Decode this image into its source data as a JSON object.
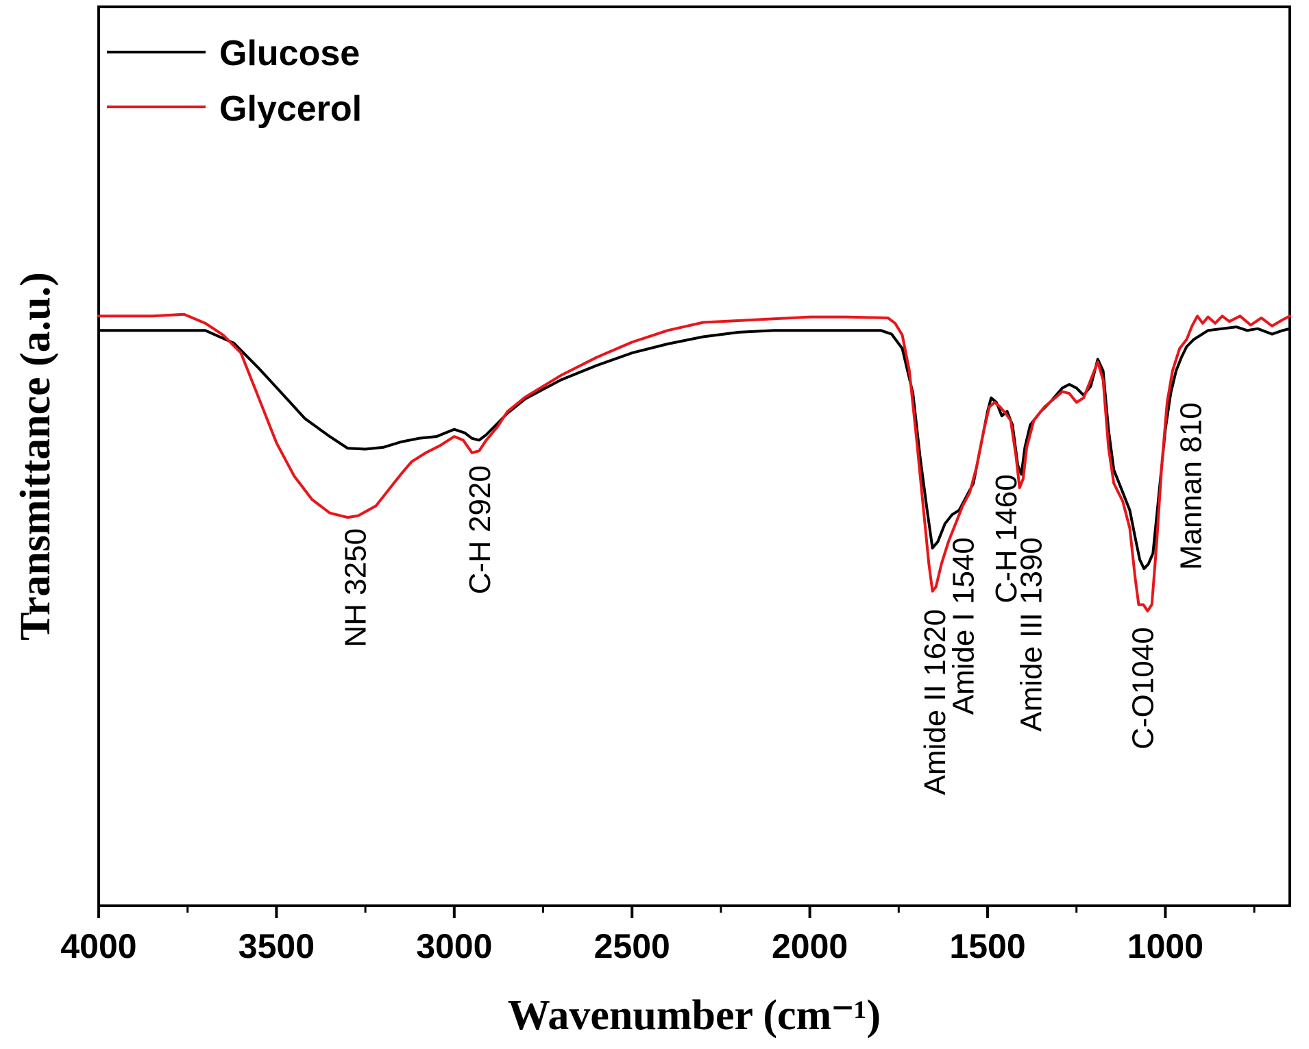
{
  "chart_data": {
    "type": "line",
    "title": "",
    "xlabel": "Wavenumber (cm⁻¹)",
    "ylabel": "Transmittance (a.u.)",
    "xlim": [
      4000,
      650
    ],
    "ylim": [
      0,
      100
    ],
    "x_ticks": [
      "4000",
      "3500",
      "3000",
      "2500",
      "2000",
      "1500",
      "1000"
    ],
    "y_ticks_labeled": false,
    "legend_position": "top-left",
    "series": [
      {
        "name": "Glucose",
        "color": "#000000",
        "points": [
          [
            4000,
            64
          ],
          [
            3700,
            64
          ],
          [
            3620,
            62.6
          ],
          [
            3550,
            59.8
          ],
          [
            3480,
            56.8
          ],
          [
            3420,
            54.2
          ],
          [
            3350,
            52.2
          ],
          [
            3300,
            50.9
          ],
          [
            3250,
            50.8
          ],
          [
            3200,
            51.0
          ],
          [
            3150,
            51.6
          ],
          [
            3100,
            52.0
          ],
          [
            3050,
            52.2
          ],
          [
            3000,
            53.0
          ],
          [
            2970,
            52.6
          ],
          [
            2950,
            52.0
          ],
          [
            2930,
            51.8
          ],
          [
            2910,
            52.4
          ],
          [
            2880,
            53.6
          ],
          [
            2850,
            54.8
          ],
          [
            2800,
            56.4
          ],
          [
            2700,
            58.5
          ],
          [
            2600,
            60.1
          ],
          [
            2500,
            61.5
          ],
          [
            2400,
            62.5
          ],
          [
            2300,
            63.3
          ],
          [
            2200,
            63.8
          ],
          [
            2100,
            64.0
          ],
          [
            2000,
            64.0
          ],
          [
            1900,
            64.0
          ],
          [
            1800,
            64.0
          ],
          [
            1770,
            63.6
          ],
          [
            1740,
            62.0
          ],
          [
            1710,
            57.0
          ],
          [
            1690,
            50.0
          ],
          [
            1670,
            44.0
          ],
          [
            1655,
            39.8
          ],
          [
            1640,
            40.5
          ],
          [
            1620,
            42.5
          ],
          [
            1600,
            43.5
          ],
          [
            1580,
            44.0
          ],
          [
            1560,
            45.5
          ],
          [
            1540,
            47.0
          ],
          [
            1520,
            51.0
          ],
          [
            1500,
            55.0
          ],
          [
            1490,
            56.5
          ],
          [
            1475,
            56.0
          ],
          [
            1460,
            54.5
          ],
          [
            1445,
            55.0
          ],
          [
            1430,
            53.5
          ],
          [
            1415,
            49.0
          ],
          [
            1405,
            48.0
          ],
          [
            1395,
            51.0
          ],
          [
            1380,
            53.5
          ],
          [
            1350,
            55.0
          ],
          [
            1320,
            56.2
          ],
          [
            1290,
            57.6
          ],
          [
            1270,
            58.0
          ],
          [
            1250,
            57.6
          ],
          [
            1230,
            56.8
          ],
          [
            1210,
            57.8
          ],
          [
            1190,
            60.8
          ],
          [
            1175,
            59.5
          ],
          [
            1160,
            53.0
          ],
          [
            1145,
            48.5
          ],
          [
            1120,
            46.0
          ],
          [
            1100,
            44.0
          ],
          [
            1085,
            41.0
          ],
          [
            1072,
            38.5
          ],
          [
            1060,
            37.5
          ],
          [
            1048,
            38.0
          ],
          [
            1035,
            39.2
          ],
          [
            1020,
            45.0
          ],
          [
            1000,
            53.0
          ],
          [
            985,
            57.0
          ],
          [
            970,
            59.5
          ],
          [
            955,
            61.0
          ],
          [
            940,
            62.2
          ],
          [
            920,
            63.0
          ],
          [
            880,
            64.0
          ],
          [
            840,
            64.2
          ],
          [
            800,
            64.4
          ],
          [
            770,
            64.0
          ],
          [
            740,
            64.2
          ],
          [
            700,
            63.6
          ],
          [
            670,
            64.0
          ],
          [
            650,
            64.2
          ]
        ]
      },
      {
        "name": "Glycerol",
        "color": "#e8161b",
        "points": [
          [
            4000,
            65.6
          ],
          [
            3850,
            65.6
          ],
          [
            3760,
            65.8
          ],
          [
            3700,
            64.8
          ],
          [
            3650,
            63.5
          ],
          [
            3600,
            61.5
          ],
          [
            3550,
            56.5
          ],
          [
            3500,
            51.5
          ],
          [
            3450,
            47.8
          ],
          [
            3400,
            45.2
          ],
          [
            3350,
            43.7
          ],
          [
            3300,
            43.2
          ],
          [
            3270,
            43.4
          ],
          [
            3220,
            44.5
          ],
          [
            3180,
            46.5
          ],
          [
            3150,
            48.0
          ],
          [
            3120,
            49.4
          ],
          [
            3080,
            50.4
          ],
          [
            3040,
            51.2
          ],
          [
            3000,
            52.2
          ],
          [
            2975,
            51.8
          ],
          [
            2950,
            50.4
          ],
          [
            2930,
            50.6
          ],
          [
            2910,
            51.8
          ],
          [
            2880,
            53.2
          ],
          [
            2850,
            55.0
          ],
          [
            2800,
            56.6
          ],
          [
            2700,
            59.0
          ],
          [
            2600,
            61.0
          ],
          [
            2500,
            62.7
          ],
          [
            2400,
            64.0
          ],
          [
            2300,
            64.9
          ],
          [
            2250,
            65.0
          ],
          [
            2100,
            65.3
          ],
          [
            2000,
            65.5
          ],
          [
            1900,
            65.5
          ],
          [
            1780,
            65.4
          ],
          [
            1760,
            64.8
          ],
          [
            1740,
            63.5
          ],
          [
            1720,
            59.5
          ],
          [
            1700,
            52.0
          ],
          [
            1680,
            44.0
          ],
          [
            1665,
            38.0
          ],
          [
            1655,
            35.0
          ],
          [
            1645,
            35.5
          ],
          [
            1630,
            38.0
          ],
          [
            1610,
            40.5
          ],
          [
            1590,
            42.5
          ],
          [
            1570,
            44.5
          ],
          [
            1550,
            46.0
          ],
          [
            1530,
            49.0
          ],
          [
            1510,
            53.0
          ],
          [
            1495,
            55.5
          ],
          [
            1480,
            56.0
          ],
          [
            1465,
            55.5
          ],
          [
            1450,
            54.8
          ],
          [
            1435,
            54.0
          ],
          [
            1420,
            50.0
          ],
          [
            1410,
            46.5
          ],
          [
            1400,
            47.5
          ],
          [
            1390,
            51.0
          ],
          [
            1370,
            54.0
          ],
          [
            1340,
            55.5
          ],
          [
            1310,
            56.5
          ],
          [
            1290,
            57.2
          ],
          [
            1270,
            57.0
          ],
          [
            1250,
            56.0
          ],
          [
            1230,
            56.5
          ],
          [
            1210,
            58.5
          ],
          [
            1190,
            60.5
          ],
          [
            1175,
            58.5
          ],
          [
            1160,
            51.0
          ],
          [
            1145,
            47.0
          ],
          [
            1120,
            45.0
          ],
          [
            1100,
            42.0
          ],
          [
            1085,
            36.5
          ],
          [
            1075,
            33.5
          ],
          [
            1062,
            33.5
          ],
          [
            1050,
            32.8
          ],
          [
            1038,
            33.5
          ],
          [
            1025,
            40.0
          ],
          [
            1010,
            49.0
          ],
          [
            995,
            56.0
          ],
          [
            980,
            59.5
          ],
          [
            960,
            62.0
          ],
          [
            940,
            63.0
          ],
          [
            925,
            64.5
          ],
          [
            910,
            65.6
          ],
          [
            895,
            64.8
          ],
          [
            880,
            65.5
          ],
          [
            860,
            64.8
          ],
          [
            840,
            65.6
          ],
          [
            820,
            65.0
          ],
          [
            790,
            65.6
          ],
          [
            760,
            64.6
          ],
          [
            730,
            65.4
          ],
          [
            700,
            64.5
          ],
          [
            670,
            65.2
          ],
          [
            650,
            65.6
          ]
        ]
      }
    ],
    "annotations": [
      {
        "text": "NH  3250",
        "x": 3280,
        "y": 42
      },
      {
        "text": "C-H  2920",
        "x": 2930,
        "y": 49
      },
      {
        "text": "Amide II  1620",
        "x": 1650,
        "y": 33
      },
      {
        "text": "Amide I 1540",
        "x": 1570,
        "y": 41
      },
      {
        "text": "C-H 1460",
        "x": 1450,
        "y": 48
      },
      {
        "text": "Amide III 1390",
        "x": 1380,
        "y": 41
      },
      {
        "text": "C-O1040",
        "x": 1065,
        "y": 31
      },
      {
        "text": "Mannan 810",
        "x": 930,
        "y": 56
      }
    ]
  }
}
